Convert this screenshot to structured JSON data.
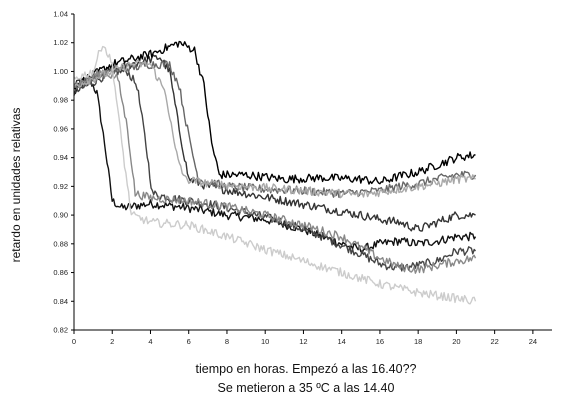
{
  "chart_data": {
    "type": "line",
    "ylabel": "retardo en unidades relativas",
    "xlabel_lines": [
      "tiempo en horas. Empezó a las 16.40??",
      "Se metieron a 35 ºC a las 14.40"
    ],
    "xlim": [
      0,
      25
    ],
    "ylim": [
      0.82,
      1.04
    ],
    "x_ticks": [
      0,
      2,
      4,
      6,
      8,
      10,
      12,
      14,
      16,
      18,
      20,
      22,
      24
    ],
    "y_ticks": [
      0.82,
      0.84,
      0.86,
      0.88,
      0.9,
      0.92,
      0.94,
      0.96,
      0.98,
      1.0,
      1.02,
      1.04
    ],
    "y_tick_labels": [
      "0.82",
      "0.84",
      "0.86",
      "0.88",
      "0.90",
      "0.92",
      "0.94",
      "0.96",
      "0.98",
      "1.00",
      "1.02",
      "1.04"
    ],
    "grid": false,
    "series": [
      {
        "color": "#111111",
        "points": [
          [
            0,
            0.985
          ],
          [
            0.8,
            0.995
          ],
          [
            1.2,
            0.985
          ],
          [
            1.6,
            0.95
          ],
          [
            2.0,
            0.91
          ],
          [
            2.5,
            0.905
          ],
          [
            4,
            0.908
          ],
          [
            6,
            0.905
          ],
          [
            8,
            0.9
          ],
          [
            10,
            0.897
          ],
          [
            12,
            0.89
          ],
          [
            14,
            0.88
          ],
          [
            15,
            0.876
          ],
          [
            16,
            0.88
          ],
          [
            17,
            0.882
          ],
          [
            18,
            0.88
          ],
          [
            19,
            0.882
          ],
          [
            20,
            0.885
          ],
          [
            21,
            0.885
          ]
        ]
      },
      {
        "color": "#444444",
        "points": [
          [
            0,
            0.985
          ],
          [
            2,
            1.0
          ],
          [
            2.8,
            1.0
          ],
          [
            3.3,
            0.99
          ],
          [
            3.7,
            0.955
          ],
          [
            4.1,
            0.915
          ],
          [
            5,
            0.912
          ],
          [
            7,
            0.908
          ],
          [
            9,
            0.902
          ],
          [
            11,
            0.895
          ],
          [
            13,
            0.885
          ],
          [
            15,
            0.873
          ],
          [
            16,
            0.866
          ],
          [
            17,
            0.863
          ],
          [
            18,
            0.865
          ],
          [
            19,
            0.868
          ],
          [
            20,
            0.875
          ],
          [
            21,
            0.875
          ]
        ]
      },
      {
        "color": "#333333",
        "points": [
          [
            0,
            0.99
          ],
          [
            3,
            1.005
          ],
          [
            4.5,
            1.01
          ],
          [
            5.0,
            1.0
          ],
          [
            5.5,
            0.96
          ],
          [
            6.0,
            0.925
          ],
          [
            7,
            0.92
          ],
          [
            9,
            0.915
          ],
          [
            11,
            0.91
          ],
          [
            13,
            0.905
          ],
          [
            15,
            0.9
          ],
          [
            16,
            0.897
          ],
          [
            17,
            0.895
          ],
          [
            18,
            0.89
          ],
          [
            19,
            0.895
          ],
          [
            20,
            0.9
          ],
          [
            21,
            0.9
          ]
        ]
      },
      {
        "color": "#000000",
        "points": [
          [
            0,
            0.99
          ],
          [
            2,
            1.005
          ],
          [
            4,
            1.012
          ],
          [
            5.5,
            1.02
          ],
          [
            6.3,
            1.015
          ],
          [
            6.8,
            0.99
          ],
          [
            7.2,
            0.95
          ],
          [
            7.6,
            0.928
          ],
          [
            9,
            0.928
          ],
          [
            11,
            0.925
          ],
          [
            13,
            0.926
          ],
          [
            15,
            0.925
          ],
          [
            16,
            0.923
          ],
          [
            17,
            0.927
          ],
          [
            18,
            0.93
          ],
          [
            19,
            0.935
          ],
          [
            20,
            0.94
          ],
          [
            21,
            0.942
          ]
        ]
      },
      {
        "color": "#666666",
        "points": [
          [
            0,
            0.99
          ],
          [
            2,
            1.0
          ],
          [
            4,
            1.005
          ],
          [
            5.0,
            1.005
          ],
          [
            5.5,
            0.99
          ],
          [
            6.0,
            0.955
          ],
          [
            6.5,
            0.925
          ],
          [
            8,
            0.92
          ],
          [
            10,
            0.918
          ],
          [
            12,
            0.917
          ],
          [
            14,
            0.915
          ],
          [
            16,
            0.917
          ],
          [
            17,
            0.92
          ],
          [
            18,
            0.922
          ],
          [
            19,
            0.925
          ],
          [
            20,
            0.928
          ],
          [
            21,
            0.928
          ]
        ]
      },
      {
        "color": "#888888",
        "points": [
          [
            0,
            0.99
          ],
          [
            1.5,
            1.0
          ],
          [
            2.3,
            0.995
          ],
          [
            2.8,
            0.96
          ],
          [
            3.2,
            0.915
          ],
          [
            4,
            0.912
          ],
          [
            6,
            0.91
          ],
          [
            8,
            0.906
          ],
          [
            10,
            0.9
          ],
          [
            12,
            0.893
          ],
          [
            14,
            0.885
          ],
          [
            16,
            0.87
          ],
          [
            17,
            0.864
          ],
          [
            18,
            0.862
          ],
          [
            19,
            0.865
          ],
          [
            20,
            0.868
          ],
          [
            21,
            0.87
          ]
        ]
      },
      {
        "color": "#a8a8a8",
        "points": [
          [
            0,
            0.99
          ],
          [
            3,
            1.005
          ],
          [
            4,
            1.005
          ],
          [
            4.8,
            0.985
          ],
          [
            5.3,
            0.945
          ],
          [
            5.8,
            0.925
          ],
          [
            7,
            0.922
          ],
          [
            9,
            0.92
          ],
          [
            11,
            0.918
          ],
          [
            13,
            0.916
          ],
          [
            15,
            0.914
          ],
          [
            17,
            0.918
          ],
          [
            18,
            0.92
          ],
          [
            19,
            0.922
          ],
          [
            20,
            0.925
          ],
          [
            21,
            0.925
          ]
        ]
      },
      {
        "color": "#cccccc",
        "points": [
          [
            0,
            0.995
          ],
          [
            1,
            1.0
          ],
          [
            1.5,
            1.02
          ],
          [
            2,
            1.005
          ],
          [
            2.5,
            0.95
          ],
          [
            3,
            0.9
          ],
          [
            4,
            0.895
          ],
          [
            6,
            0.893
          ],
          [
            8,
            0.885
          ],
          [
            10,
            0.876
          ],
          [
            12,
            0.868
          ],
          [
            14,
            0.86
          ],
          [
            16,
            0.852
          ],
          [
            18,
            0.846
          ],
          [
            20,
            0.842
          ],
          [
            21,
            0.84
          ]
        ]
      }
    ]
  }
}
